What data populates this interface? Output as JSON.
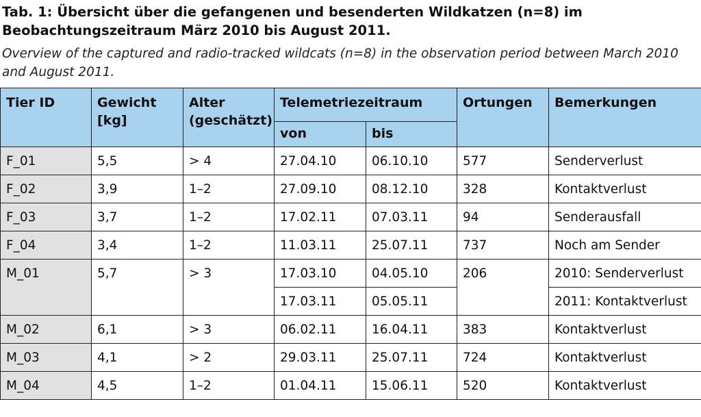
{
  "caption": {
    "title": "Tab. 1: Übersicht über die gefangenen und besenderten Wildkatzen (n=8) im Beobachtungszeitraum März 2010 bis August 2011.",
    "subtitle": "Overview of the captured and radio-tracked wildcats (n=8) in the observation period between March 2010 and August 2011."
  },
  "table": {
    "headers": {
      "id": "Tier ID",
      "weight": "Gewicht [kg]",
      "age": "Alter (geschätzt)",
      "telemetry": "Telemetriezeitraum",
      "from": "von",
      "to": "bis",
      "fixes": "Ortungen",
      "remarks": "Bemerkungen"
    },
    "rows": [
      {
        "id": "F_01",
        "weight": "5,5",
        "age": "> 4",
        "from": "27.04.10",
        "to": "06.10.10",
        "fixes": "577",
        "remarks": "Senderverlust"
      },
      {
        "id": "F_02",
        "weight": "3,9",
        "age": "1–2",
        "from": "27.09.10",
        "to": "08.12.10",
        "fixes": "328",
        "remarks": "Kontaktverlust"
      },
      {
        "id": "F_03",
        "weight": "3,7",
        "age": "1–2",
        "from": "17.02.11",
        "to": "07.03.11",
        "fixes": "94",
        "remarks": "Senderausfall"
      },
      {
        "id": "F_04",
        "weight": "3,4",
        "age": "1–2",
        "from": "11.03.11",
        "to": "25.07.11",
        "fixes": "737",
        "remarks": "Noch am Sender"
      },
      {
        "id": "M_01",
        "weight": "5,7",
        "age": "> 3",
        "from": "17.03.10",
        "to": "04.05.10",
        "fixes": "206",
        "remarks": "2010: Senderverlust",
        "from2": "17.03.11",
        "to2": "05.05.11",
        "remarks2": "2011: Kontaktverlust"
      },
      {
        "id": "M_02",
        "weight": "6,1",
        "age": "> 3",
        "from": "06.02.11",
        "to": "16.04.11",
        "fixes": "383",
        "remarks": "Kontaktverlust"
      },
      {
        "id": "M_03",
        "weight": "4,1",
        "age": "> 2",
        "from": "29.03.11",
        "to": "25.07.11",
        "fixes": "724",
        "remarks": "Kontaktverlust"
      },
      {
        "id": "M_04",
        "weight": "4,5",
        "age": "1–2",
        "from": "01.04.11",
        "to": "15.06.11",
        "fixes": "520",
        "remarks": "Kontaktverlust"
      }
    ]
  }
}
